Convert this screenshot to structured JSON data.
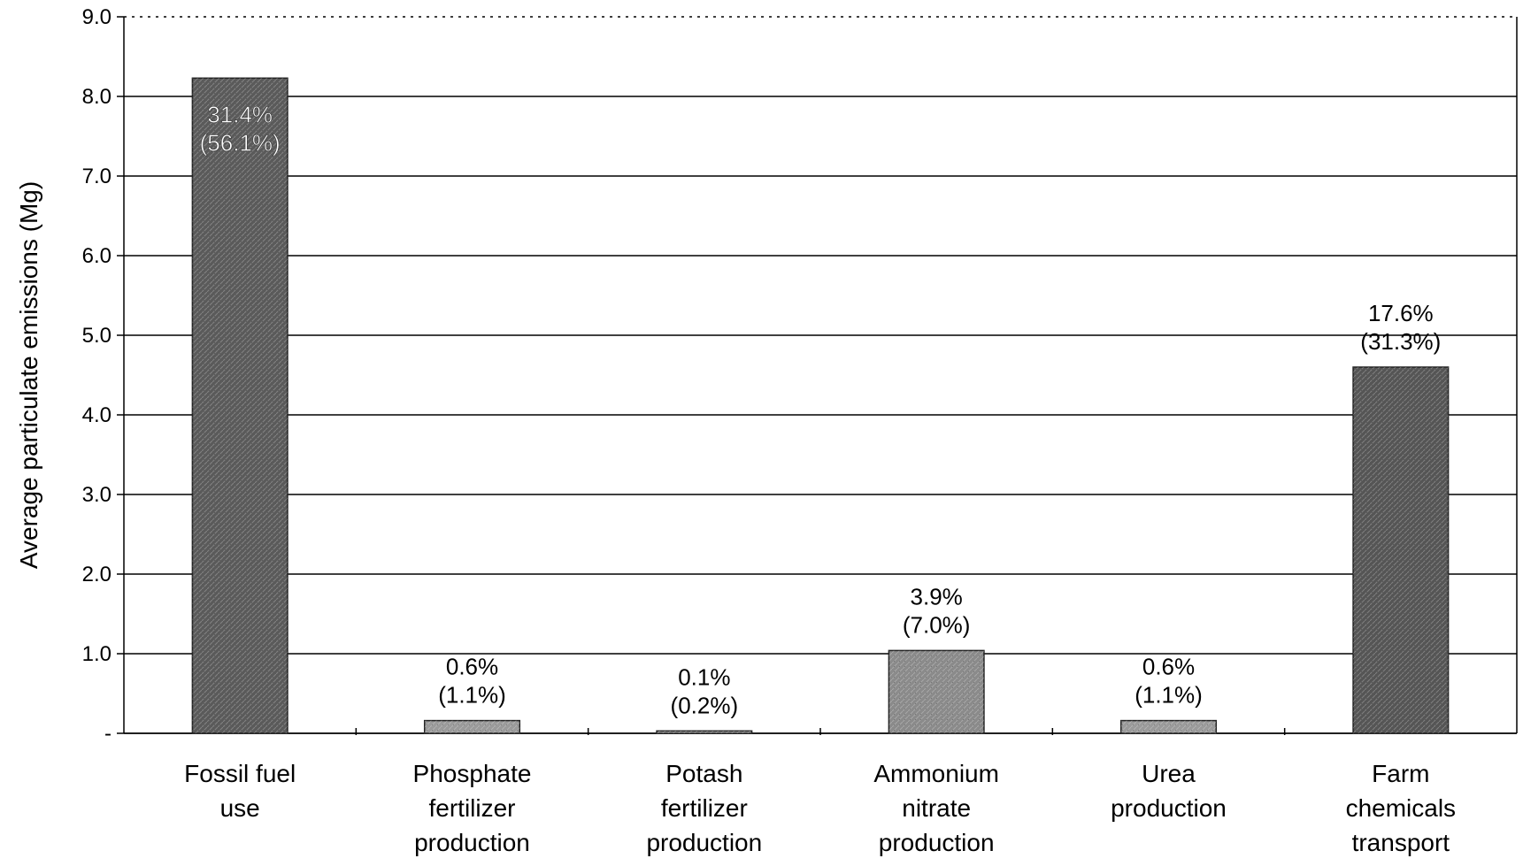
{
  "chart_data": {
    "type": "bar",
    "y_label": "Average particulate emissions (Mg)",
    "categories": [
      [
        "Fossil fuel",
        "use"
      ],
      [
        "Phosphate",
        "fertilizer",
        "production"
      ],
      [
        "Potash",
        "fertilizer",
        "production"
      ],
      [
        "Ammonium",
        "nitrate",
        "production"
      ],
      [
        "Urea",
        "production"
      ],
      [
        "Farm",
        "chemicals",
        "transport"
      ]
    ],
    "values": [
      8.23,
      0.16,
      0.03,
      1.04,
      0.16,
      4.6
    ],
    "annotations": [
      [
        "31.4%",
        "(56.1%)"
      ],
      [
        "0.6%",
        "(1.1%)"
      ],
      [
        "0.1%",
        "(0.2%)"
      ],
      [
        "3.9%",
        "(7.0%)"
      ],
      [
        "0.6%",
        "(1.1%)"
      ],
      [
        "17.6%",
        "(31.3%)"
      ]
    ],
    "annotation_inside": [
      true,
      false,
      false,
      false,
      false,
      false
    ],
    "colors": [
      "#5a5a5a",
      "#9a9a9a",
      "#9a9a9a",
      "#8a8a8a",
      "#9a9a9a",
      "#555555"
    ],
    "ylim": [
      0,
      9
    ],
    "yticks": [
      {
        "value": 0,
        "label": "-"
      },
      {
        "value": 1,
        "label": "1.0"
      },
      {
        "value": 2,
        "label": "2.0"
      },
      {
        "value": 3,
        "label": "3.0"
      },
      {
        "value": 4,
        "label": "4.0"
      },
      {
        "value": 5,
        "label": "5.0"
      },
      {
        "value": 6,
        "label": "6.0"
      },
      {
        "value": 7,
        "label": "7.0"
      },
      {
        "value": 8,
        "label": "8.0"
      },
      {
        "value": 9,
        "label": "9.0"
      }
    ],
    "grid": true
  }
}
